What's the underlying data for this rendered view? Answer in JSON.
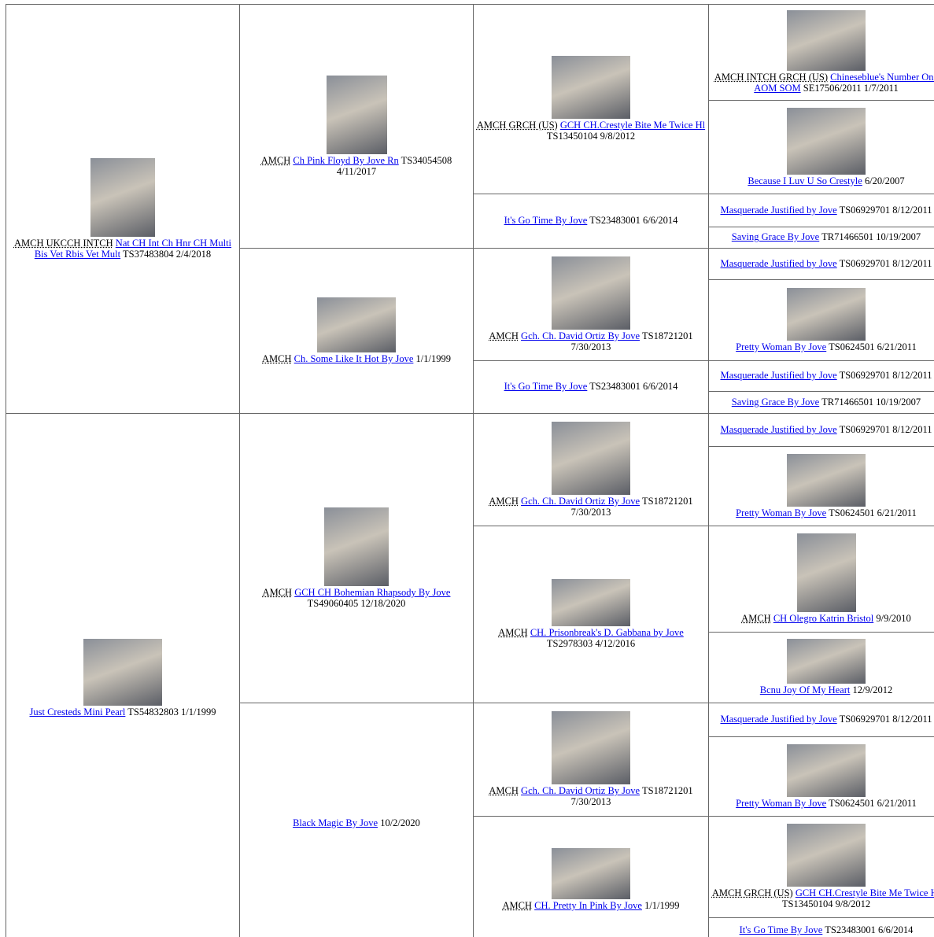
{
  "pedigree": {
    "columns": [
      [
        {
          "title": "AMCH UKCCH INTCH",
          "name": "Nat CH Int Ch Hnr CH Multi Bis Vet Rbis Vet Mult",
          "info": "TS37483804 2/4/2018"
        },
        {
          "name": "Just Cresteds Mini Pearl",
          "info": "TS54832803 1/1/1999"
        }
      ],
      [
        {
          "title": "AMCH",
          "name": "Ch Pink Floyd By Jove Rn",
          "info": "TS34054508 4/11/2017"
        },
        {
          "title": "AMCH",
          "name": "Ch. Some Like It Hot By Jove",
          "info": "1/1/1999"
        },
        {
          "title": "AMCH",
          "name": "GCH CH Bohemian Rhapsody By Jove",
          "info": "TS49060405 12/18/2020"
        },
        {
          "name": "Black Magic By Jove",
          "info": "10/2/2020"
        }
      ],
      [
        {
          "title": "AMCH GRCH (US)",
          "name": "GCH CH.Crestyle Bite Me Twice Hl",
          "info": "TS13450104 9/8/2012"
        },
        {
          "name": "It's Go Time By Jove",
          "info": "TS23483001 6/6/2014"
        },
        {
          "title": "AMCH",
          "name": "Gch. Ch. David Ortiz By Jove",
          "info": "TS18721201 7/30/2013"
        },
        {
          "name": "It's Go Time By Jove",
          "info": "TS23483001 6/6/2014"
        },
        {
          "title": "AMCH",
          "name": "Gch. Ch. David Ortiz By Jove",
          "info": "TS18721201 7/30/2013"
        },
        {
          "title": "AMCH",
          "name": "CH. Prisonbreak's D. Gabbana by Jove",
          "info": "TS2978303 4/12/2016"
        },
        {
          "title": "AMCH",
          "name": "Gch. Ch. David Ortiz By Jove",
          "info": "TS18721201 7/30/2013"
        },
        {
          "title": "AMCH",
          "name": "CH. Pretty In Pink By Jove",
          "info": "1/1/1999"
        }
      ],
      [
        {
          "title": "AMCH INTCH GRCH (US)",
          "name": "Chineseblue's Number One AOM SOM",
          "info": "SE17506/2011 1/7/2011"
        },
        {
          "name": "Because I Luv U So Crestyle",
          "info": "6/20/2007"
        },
        {
          "name": "Masquerade Justified by Jove",
          "info": "TS06929701 8/12/2011"
        },
        {
          "name": "Saving Grace By Jove",
          "info": "TR71466501 10/19/2007"
        },
        {
          "name": "Masquerade Justified by Jove",
          "info": "TS06929701 8/12/2011"
        },
        {
          "name": "Pretty Woman By Jove",
          "info": "TS0624501 6/21/2011"
        },
        {
          "name": "Masquerade Justified by Jove",
          "info": "TS06929701 8/12/2011"
        },
        {
          "name": "Saving Grace By Jove",
          "info": "TR71466501 10/19/2007"
        },
        {
          "name": "Masquerade Justified by Jove",
          "info": "TS06929701 8/12/2011"
        },
        {
          "name": "Pretty Woman By Jove",
          "info": "TS0624501 6/21/2011"
        },
        {
          "title": "AMCH",
          "name": "CH Olegro Katrin Bristol",
          "info": "9/9/2010"
        },
        {
          "name": "Bcnu Joy Of My Heart",
          "info": "12/9/2012"
        },
        {
          "name": "Masquerade Justified by Jove",
          "info": "TS06929701 8/12/2011"
        },
        {
          "name": "Pretty Woman By Jove",
          "info": "TS0624501 6/21/2011"
        },
        {
          "title": "AMCH GRCH (US)",
          "name": "GCH CH.Crestyle Bite Me Twice Hl",
          "info": "TS13450104 9/8/2012"
        },
        {
          "name": "It's Go Time By Jove",
          "info": "TS23483001 6/6/2014"
        }
      ]
    ]
  }
}
